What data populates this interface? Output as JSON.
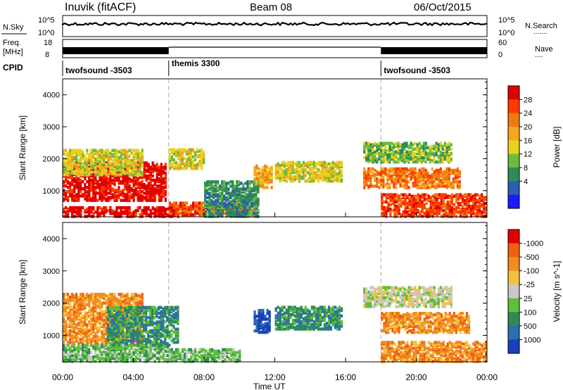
{
  "header": {
    "station": "Inuvik (fitACF)",
    "beam": "Beam 08",
    "date": "06/Oct/2015"
  },
  "strip_panels": {
    "nsky": {
      "left_label": "N.Sky",
      "right_label": "N.Search",
      "tick_top": "10^5",
      "tick_bottom": "10^0"
    },
    "freq": {
      "left_label_1": "Freq.",
      "left_label_2": "[MHz]",
      "right_label": "Nave",
      "left_tick_top": "18",
      "left_tick_bottom": "8",
      "right_tick_top": "60",
      "right_tick_bottom": "0"
    },
    "cpid": {
      "label": "CPID",
      "segments": [
        {
          "name": "twofsound -3503",
          "start_hour": 0,
          "end_hour": 6
        },
        {
          "name": "themis 3300",
          "start_hour": 6,
          "end_hour": 18
        },
        {
          "name": "twofsound -3503",
          "start_hour": 18,
          "end_hour": 24
        }
      ]
    }
  },
  "chart_data": [
    {
      "type": "heatmap",
      "title": "",
      "xlabel": "Time UT",
      "ylabel": "Slant Range [km]",
      "x_ticks": [
        "00:00",
        "04:00",
        "08:00",
        "12:00",
        "16:00",
        "20:00",
        "00:00"
      ],
      "x_range_hours": [
        0,
        24
      ],
      "y_ticks": [
        "1000",
        "2000",
        "3000",
        "4000"
      ],
      "y_range_km": [
        180,
        4500
      ],
      "colorbar": {
        "label": "Power [dB]",
        "ticks": [
          "4",
          "8",
          "12",
          "16",
          "20",
          "24",
          "28"
        ],
        "range": [
          0,
          32
        ],
        "colors": [
          "#1a1aff",
          "#2a5fb0",
          "#2e8b57",
          "#6dbb3c",
          "#e8d21d",
          "#f5a623",
          "#f07a10",
          "#ff3a00",
          "#e00000"
        ]
      },
      "regions": [
        {
          "t0": 0,
          "t1": 5.8,
          "r0": 700,
          "r1": 1900,
          "level": 8
        },
        {
          "t0": 0,
          "t1": 6.5,
          "r0": 200,
          "r1": 500,
          "level": 8
        },
        {
          "t0": 6,
          "t1": 11,
          "r0": 250,
          "r1": 650,
          "level": 7
        },
        {
          "t0": 0,
          "t1": 4.5,
          "r0": 1500,
          "r1": 2300,
          "level": 4
        },
        {
          "t0": 10.8,
          "t1": 11.8,
          "r0": 1100,
          "r1": 1800,
          "level": 5
        },
        {
          "t0": 12,
          "t1": 15.8,
          "r0": 1300,
          "r1": 1900,
          "level": 4
        },
        {
          "t0": 17,
          "t1": 22.5,
          "r0": 1100,
          "r1": 1700,
          "level": 6
        },
        {
          "t0": 17,
          "t1": 22,
          "r0": 1900,
          "r1": 2500,
          "level": 3
        },
        {
          "t0": 18,
          "t1": 24,
          "r0": 200,
          "r1": 900,
          "level": 7
        },
        {
          "t0": 6,
          "t1": 8,
          "r0": 1700,
          "r1": 2300,
          "level": 4
        },
        {
          "t0": 8,
          "t1": 11,
          "r0": 200,
          "r1": 1300,
          "level": 2
        }
      ]
    },
    {
      "type": "heatmap",
      "title": "",
      "xlabel": "Time UT",
      "ylabel": "Slant Range [km]",
      "x_ticks": [
        "00:00",
        "04:00",
        "08:00",
        "12:00",
        "16:00",
        "20:00",
        "00:00"
      ],
      "x_range_hours": [
        0,
        24
      ],
      "y_ticks": [
        "1000",
        "2000",
        "3000",
        "4000"
      ],
      "y_range_km": [
        180,
        4500
      ],
      "colorbar": {
        "label": "Velocity [m s^-1]",
        "ticks": [
          "1000",
          "500",
          "100",
          "25",
          "-25",
          "-100",
          "-500",
          "-1000"
        ],
        "colors": [
          "#1a3fbf",
          "#2a6fb0",
          "#2e8b57",
          "#5fbf3a",
          "#c8c8c8",
          "#f5c040",
          "#f08c20",
          "#f06010",
          "#e00000"
        ]
      },
      "regions": [
        {
          "t0": 0,
          "t1": 4.5,
          "r0": 700,
          "r1": 2300,
          "level": 6
        },
        {
          "t0": 2.5,
          "t1": 6.5,
          "r0": 700,
          "r1": 1900,
          "level": 2
        },
        {
          "t0": 0,
          "t1": 6,
          "r0": 200,
          "r1": 700,
          "level": 3
        },
        {
          "t0": 6,
          "t1": 10,
          "r0": 200,
          "r1": 600,
          "level": 3
        },
        {
          "t0": 10.8,
          "t1": 11.7,
          "r0": 1100,
          "r1": 1800,
          "level": 0
        },
        {
          "t0": 12,
          "t1": 15.8,
          "r0": 1200,
          "r1": 1900,
          "level": 2
        },
        {
          "t0": 18,
          "t1": 23,
          "r0": 1100,
          "r1": 1700,
          "level": 6
        },
        {
          "t0": 17,
          "t1": 22,
          "r0": 1900,
          "r1": 2500,
          "level": 4
        },
        {
          "t0": 18,
          "t1": 24,
          "r0": 200,
          "r1": 800,
          "level": 6
        }
      ]
    }
  ]
}
